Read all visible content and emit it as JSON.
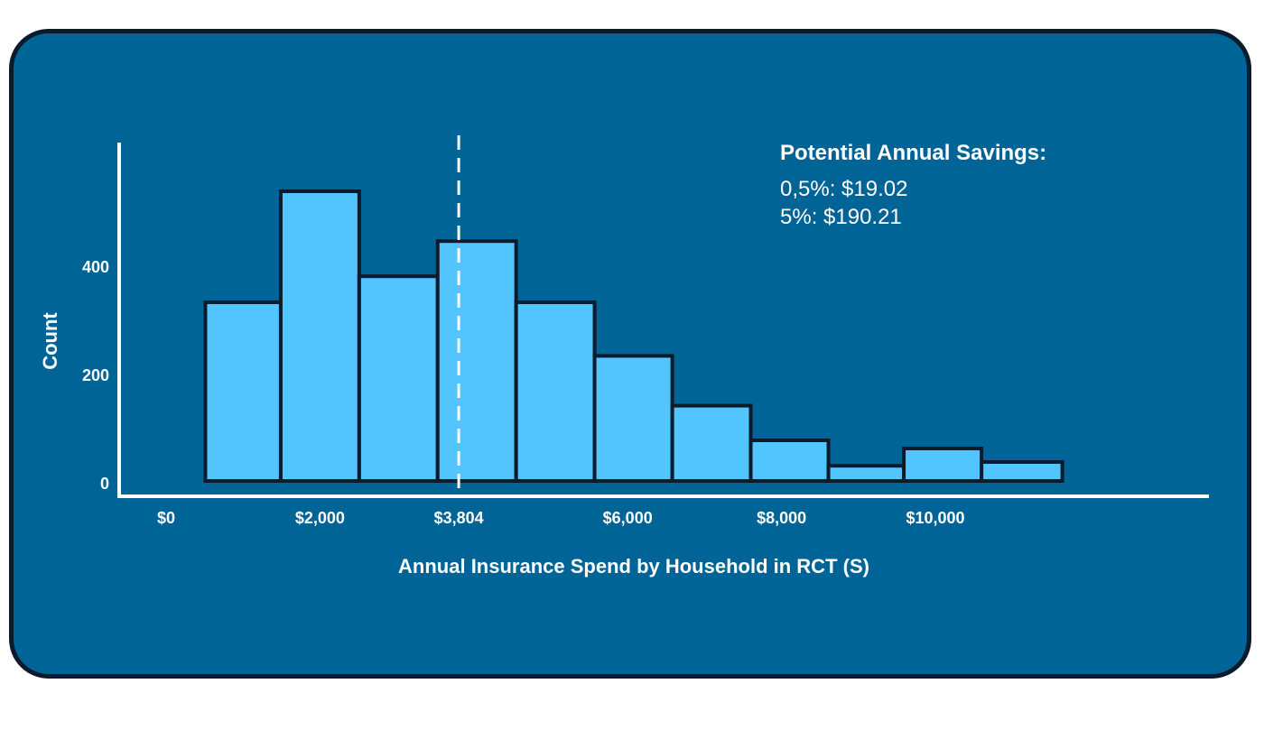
{
  "colors": {
    "background": "#006497",
    "frame": "#0b1b2c",
    "bar_fill": "#52c5ff",
    "bar_stroke": "#0b1b2c",
    "axis": "#ffffff",
    "text": "#ffffff"
  },
  "chart_data": {
    "type": "bar",
    "title": "",
    "xlabel": "Annual Insurance Spend by Household in RCT (S)",
    "ylabel": "Count",
    "xlim": [
      0,
      13500
    ],
    "ylim": [
      0,
      555
    ],
    "grid": false,
    "legend": "none",
    "x_ticks": [
      {
        "value": 0,
        "label": "$0"
      },
      {
        "value": 2000,
        "label": "$2,000"
      },
      {
        "value": 3804,
        "label": "$3,804"
      },
      {
        "value": 6000,
        "label": "$6,000"
      },
      {
        "value": 8000,
        "label": "$8,000"
      },
      {
        "value": 10000,
        "label": "$10,000"
      }
    ],
    "y_ticks": [
      {
        "value": 0,
        "label": "0"
      },
      {
        "value": 200,
        "label": "200"
      },
      {
        "value": 400,
        "label": "400"
      }
    ],
    "bins": [
      {
        "x0": 510,
        "x1": 1490,
        "count": 330
      },
      {
        "x0": 1490,
        "x1": 2510,
        "count": 535
      },
      {
        "x0": 2510,
        "x1": 3530,
        "count": 378
      },
      {
        "x0": 3530,
        "x1": 4550,
        "count": 443
      },
      {
        "x0": 4550,
        "x1": 5570,
        "count": 330
      },
      {
        "x0": 5570,
        "x1": 6580,
        "count": 231
      },
      {
        "x0": 6580,
        "x1": 7600,
        "count": 139
      },
      {
        "x0": 7600,
        "x1": 8610,
        "count": 75
      },
      {
        "x0": 8610,
        "x1": 9590,
        "count": 28
      },
      {
        "x0": 9590,
        "x1": 10600,
        "count": 60
      },
      {
        "x0": 10600,
        "x1": 11650,
        "count": 35
      }
    ],
    "reference_line": {
      "x": 3804,
      "style": "dashed"
    },
    "annotation": {
      "title": "Potential Annual Savings:",
      "lines": [
        "0,5%: $19.02",
        "5%: $190.21"
      ]
    }
  }
}
